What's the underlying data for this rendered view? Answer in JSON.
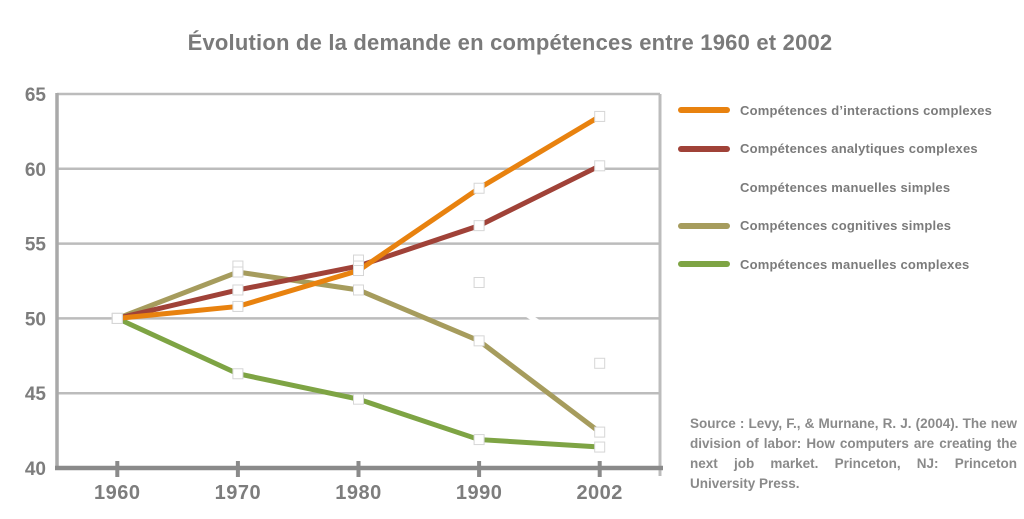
{
  "title": "Évolution de la demande en compétences entre 1960 et 2002",
  "source": "Source : Levy, F., & Murnane, R. J. (2004). The new division of labor: How computers are creating the next job market. Princeton, NJ: Princeton University Press.",
  "chart_data": {
    "type": "line",
    "title": "Évolution de la demande en compétences entre 1960 et 2002",
    "categories": [
      "1960",
      "1970",
      "1980",
      "1990",
      "2002"
    ],
    "xlabel": "",
    "ylabel": "",
    "ylim": [
      40,
      65
    ],
    "y_ticks": [
      65,
      60,
      55,
      50,
      45,
      40
    ],
    "grid": true,
    "legend_position": "right",
    "marker_style": "white-square",
    "axis_colors": {
      "grid": "#BCBCBC",
      "axis": "#8A8A8A",
      "tick_label": "#7D7D7D"
    },
    "series": [
      {
        "name": "Compétences d’interactions complexes",
        "color": "#E8820F",
        "values": [
          50,
          50.8,
          53.2,
          58.7,
          63.5
        ]
      },
      {
        "name": "Compétences analytiques complexes",
        "color": "#A04238",
        "values": [
          50,
          51.9,
          53.5,
          56.2,
          60.2
        ]
      },
      {
        "name": "Compétences manuelles simples",
        "color": "#FFFFFF",
        "values": [
          50,
          53.5,
          53.9,
          52.4,
          47
        ]
      },
      {
        "name": "Compétences cognitives simples",
        "color": "#A69C5D",
        "values": [
          50,
          53.1,
          51.9,
          48.5,
          42.4
        ]
      },
      {
        "name": "Compétences manuelles complexes",
        "color": "#7EA444",
        "values": [
          50,
          46.3,
          44.6,
          41.9,
          41.4
        ]
      }
    ]
  }
}
